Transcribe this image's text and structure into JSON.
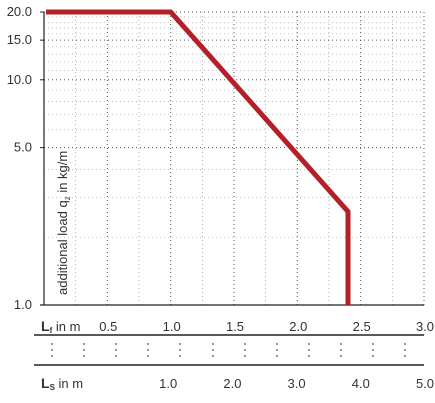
{
  "chart_data": {
    "type": "line",
    "title": "",
    "ylabel": "additional load q_z in kg/m",
    "ylabel_main": "additional load q",
    "ylabel_sub": "z",
    "ylabel_unit": " in kg/m",
    "y_scale": "log",
    "ylim": [
      1.0,
      20.0
    ],
    "y_ticks": [
      1.0,
      5.0,
      10.0,
      15.0,
      20.0
    ],
    "y_tick_labels": [
      "1.0",
      "5.0",
      "10.0",
      "15.0",
      "20.0"
    ],
    "axis_f": {
      "label_bold": "L",
      "label_sub": "f",
      "label_unit": " in m",
      "xlim": [
        0.0,
        3.0
      ],
      "ticks": [
        0.5,
        1.0,
        1.5,
        2.0,
        2.5,
        3.0
      ],
      "tick_labels": [
        "0.5",
        "1.0",
        "1.5",
        "2.0",
        "2.5",
        "3.0"
      ]
    },
    "axis_s": {
      "label_bold": "L",
      "label_sub": "S",
      "label_unit": " in m",
      "ticks": [
        1.0,
        2.0,
        3.0,
        4.0,
        5.0
      ],
      "tick_labels": [
        "1.0",
        "2.0",
        "3.0",
        "4.0",
        "5.0"
      ]
    },
    "grid": true,
    "series": [
      {
        "color": "#b3202a",
        "x": [
          0.0,
          1.0,
          2.4,
          2.4
        ],
        "y": [
          20.0,
          20.0,
          2.6,
          1.0
        ]
      }
    ]
  }
}
